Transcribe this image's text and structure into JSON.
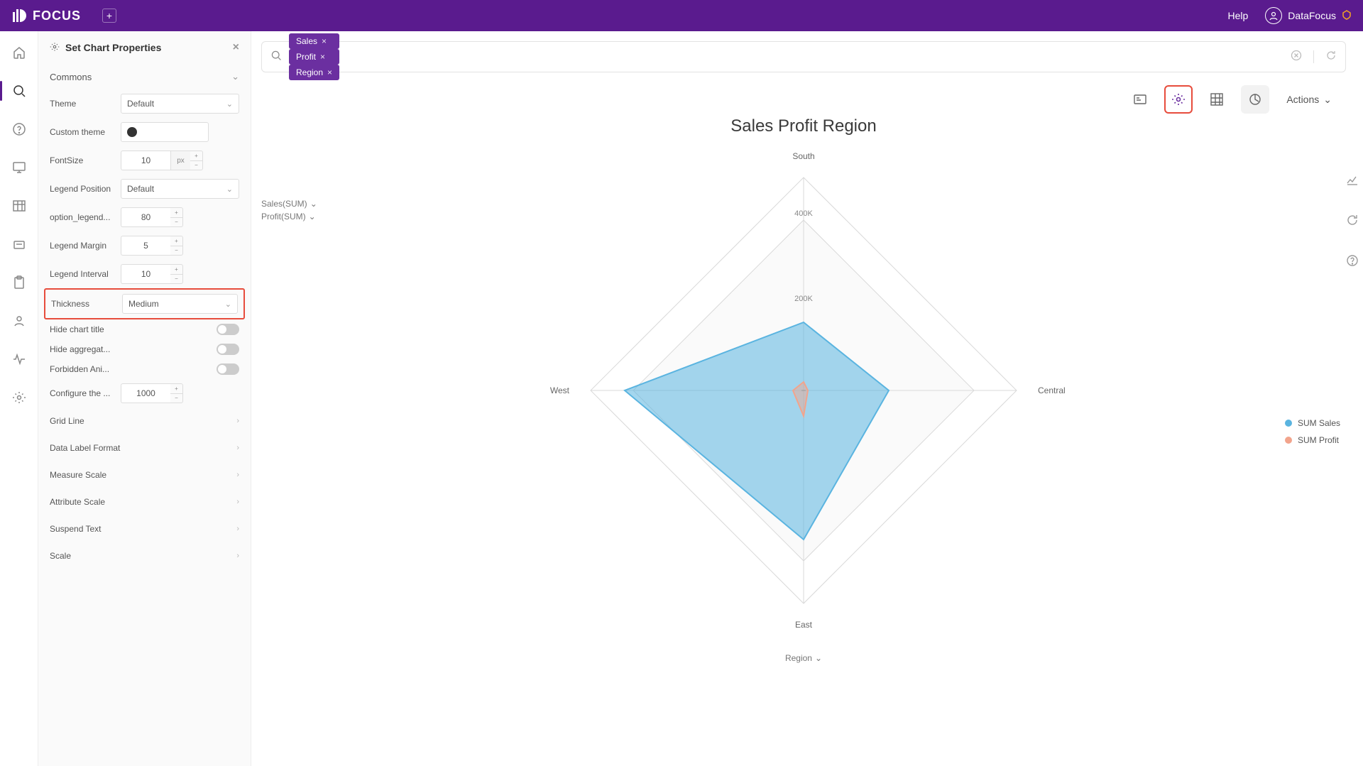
{
  "topbar": {
    "brand": "FOCUS",
    "help": "Help",
    "username": "DataFocus"
  },
  "panel": {
    "title": "Set Chart Properties",
    "section_commons": "Commons",
    "props": {
      "theme_label": "Theme",
      "theme_value": "Default",
      "custom_theme_label": "Custom theme",
      "fontsize_label": "FontSize",
      "fontsize_value": "10",
      "fontsize_unit": "px",
      "legend_pos_label": "Legend Position",
      "legend_pos_value": "Default",
      "option_legend_label": "option_legend...",
      "option_legend_value": "80",
      "legend_margin_label": "Legend Margin",
      "legend_margin_value": "5",
      "legend_interval_label": "Legend Interval",
      "legend_interval_value": "10",
      "thickness_label": "Thickness",
      "thickness_value": "Medium",
      "hide_title_label": "Hide chart title",
      "hide_aggreg_label": "Hide aggregat...",
      "forbidden_ani_label": "Forbidden Ani...",
      "configure_label": "Configure the ...",
      "configure_value": "1000"
    },
    "collapse": {
      "grid_line": "Grid Line",
      "data_label_format": "Data Label Format",
      "measure_scale": "Measure Scale",
      "attribute_scale": "Attribute Scale",
      "suspend_text": "Suspend Text",
      "scale": "Scale"
    }
  },
  "search": {
    "pills": [
      "Sales",
      "Profit",
      "Region"
    ]
  },
  "toolbar": {
    "actions": "Actions"
  },
  "chart": {
    "title": "Sales Profit Region",
    "type": "radar",
    "axis_caption": "Region",
    "axes": [
      "South",
      "Central",
      "East",
      "West"
    ],
    "tick_labels": [
      "200K",
      "400K"
    ],
    "tick_values": [
      200000,
      400000
    ],
    "max_radius_value": 500000,
    "series": [
      {
        "name": "SUM Sales",
        "color": "#5ab4e0",
        "fill_opacity": 0.55,
        "stroke_width": 2,
        "values": [
          160000,
          200000,
          350000,
          420000
        ]
      },
      {
        "name": "SUM Profit",
        "color": "#f2a48c",
        "fill_opacity": 0.45,
        "stroke_width": 2,
        "values": [
          20000,
          10000,
          60000,
          25000
        ]
      }
    ],
    "grid_stroke": "#d9d9d9",
    "axis_label_color": "#666666",
    "tick_label_color": "#888888",
    "background": "#ffffff",
    "measures": [
      "Sales(SUM)",
      "Profit(SUM)"
    ]
  }
}
